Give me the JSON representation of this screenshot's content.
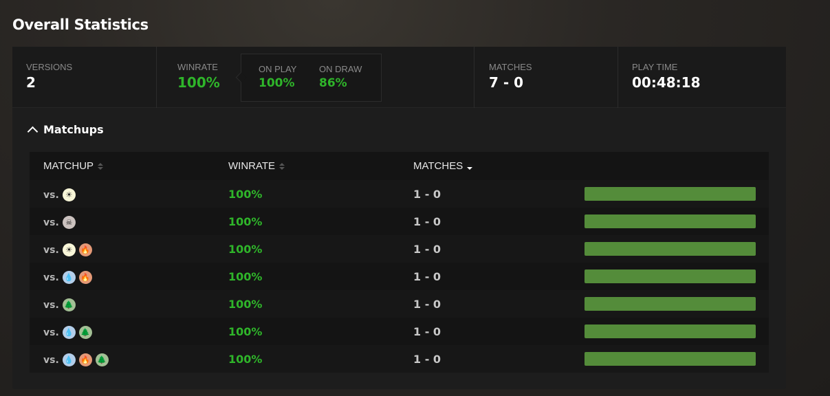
{
  "title": "Overall Statistics",
  "stats": {
    "versions": {
      "label": "VERSIONS",
      "value": "2"
    },
    "winrate": {
      "label": "WINRATE",
      "value": "100%"
    },
    "on_play": {
      "label": "ON PLAY",
      "value": "100%"
    },
    "on_draw": {
      "label": "ON DRAW",
      "value": "86%"
    },
    "matches": {
      "label": "MATCHES",
      "value": "7 - 0"
    },
    "play_time": {
      "label": "PLAY TIME",
      "value": "00:48:18"
    }
  },
  "matchups": {
    "title": "Matchups",
    "columns": [
      "MATCHUP",
      "WINRATE",
      "MATCHES"
    ],
    "sorted_column": "MATCHES",
    "sort_direction": "descending",
    "mana_colors": {
      "W": "#f8f6d8",
      "B": "#cbc2bf",
      "U": "#b3ceea",
      "R": "#e49977",
      "G": "#a3c095"
    },
    "rows": [
      {
        "prefix": "vs.",
        "colors": [
          "W"
        ],
        "winrate": "100%",
        "matches": "1 - 0",
        "win_fraction": 1
      },
      {
        "prefix": "vs.",
        "colors": [
          "B"
        ],
        "winrate": "100%",
        "matches": "1 - 0",
        "win_fraction": 1
      },
      {
        "prefix": "vs.",
        "colors": [
          "W",
          "R"
        ],
        "winrate": "100%",
        "matches": "1 - 0",
        "win_fraction": 1
      },
      {
        "prefix": "vs.",
        "colors": [
          "U",
          "R"
        ],
        "winrate": "100%",
        "matches": "1 - 0",
        "win_fraction": 1
      },
      {
        "prefix": "vs.",
        "colors": [
          "G"
        ],
        "winrate": "100%",
        "matches": "1 - 0",
        "win_fraction": 1
      },
      {
        "prefix": "vs.",
        "colors": [
          "U",
          "G"
        ],
        "winrate": "100%",
        "matches": "1 - 0",
        "win_fraction": 1
      },
      {
        "prefix": "vs.",
        "colors": [
          "U",
          "R",
          "G"
        ],
        "winrate": "100%",
        "matches": "1 - 0",
        "win_fraction": 1
      }
    ]
  }
}
